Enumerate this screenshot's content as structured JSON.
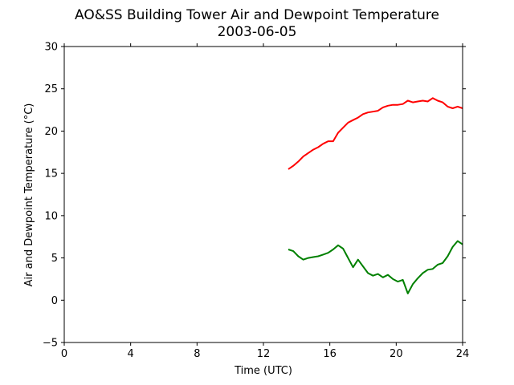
{
  "chart_data": {
    "type": "line",
    "title": "AO&SS Building Tower Air and Dewpoint Temperature",
    "subtitle": "2003-06-05",
    "xlabel": "Time (UTC)",
    "ylabel": "Air and Dewpoint Temperature (°C)",
    "xlim": [
      0,
      24
    ],
    "ylim": [
      -5,
      30
    ],
    "xticks": [
      0,
      4,
      8,
      12,
      16,
      20,
      24
    ],
    "yticks": [
      -5,
      0,
      5,
      10,
      15,
      20,
      25,
      30
    ],
    "grid": false,
    "series": [
      {
        "color": "#ff0000",
        "x": [
          13.5,
          13.8,
          14.1,
          14.4,
          14.7,
          15.0,
          15.3,
          15.6,
          15.9,
          16.2,
          16.5,
          16.8,
          17.1,
          17.4,
          17.7,
          18.0,
          18.3,
          18.6,
          18.9,
          19.2,
          19.5,
          19.8,
          20.1,
          20.4,
          20.7,
          21.0,
          21.3,
          21.6,
          21.9,
          22.2,
          22.5,
          22.8,
          23.1,
          23.4,
          23.7,
          24.0
        ],
        "values": [
          15.5,
          15.9,
          16.4,
          17.0,
          17.4,
          17.8,
          18.1,
          18.5,
          18.8,
          18.8,
          19.8,
          20.4,
          21.0,
          21.3,
          21.6,
          22.0,
          22.2,
          22.3,
          22.4,
          22.8,
          23.0,
          23.1,
          23.1,
          23.2,
          23.6,
          23.4,
          23.5,
          23.6,
          23.5,
          23.9,
          23.6,
          23.4,
          22.9,
          22.7,
          22.9,
          22.7
        ]
      },
      {
        "color": "#008000",
        "x": [
          13.5,
          13.8,
          14.1,
          14.4,
          14.7,
          15.0,
          15.3,
          15.6,
          15.9,
          16.2,
          16.5,
          16.8,
          17.1,
          17.4,
          17.7,
          18.0,
          18.3,
          18.6,
          18.9,
          19.2,
          19.5,
          19.8,
          20.1,
          20.4,
          20.7,
          21.0,
          21.3,
          21.6,
          21.9,
          22.2,
          22.5,
          22.8,
          23.1,
          23.4,
          23.7,
          24.0
        ],
        "values": [
          6.0,
          5.8,
          5.2,
          4.8,
          5.0,
          5.1,
          5.2,
          5.4,
          5.6,
          6.0,
          6.5,
          6.1,
          5.0,
          3.9,
          4.8,
          4.0,
          3.2,
          2.9,
          3.1,
          2.7,
          3.0,
          2.5,
          2.2,
          2.4,
          0.8,
          1.9,
          2.6,
          3.2,
          3.6,
          3.7,
          4.2,
          4.4,
          5.2,
          6.3,
          7.0,
          6.6
        ]
      }
    ]
  }
}
